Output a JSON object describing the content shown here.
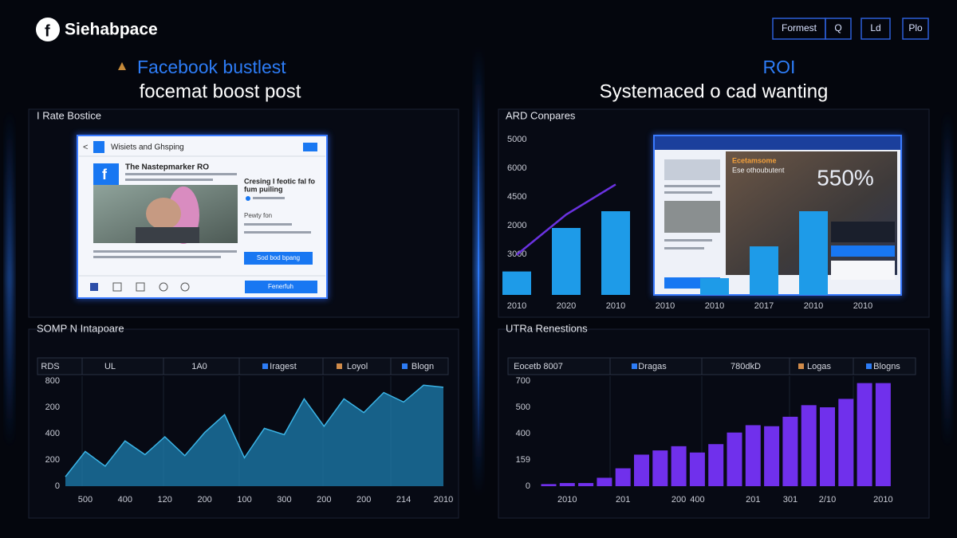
{
  "header": {
    "brand": "Siehabpace",
    "buttons": [
      "Formest",
      "Q",
      "Ld",
      "Plo"
    ]
  },
  "left_heading": {
    "title": "Facebook bustlest",
    "subtitle": "focemat boost post"
  },
  "right_heading": {
    "title": "ROI",
    "subtitle": "Systemaced o cad wanting"
  },
  "post_panel": {
    "title": "I Rate Bostice",
    "post": {
      "header": "Wisiets and Ghsping",
      "page_name": "The Nastepmarker RO",
      "headline": [
        "Cresing I feotic fal fo",
        "fum puiling"
      ],
      "meta": "Pewty fon",
      "cta": "Sod bod bpang",
      "footer_button": "Fenerfuh"
    }
  },
  "roi_card": {
    "headline": "Ecetamsome",
    "subline": "Ese othoubutent",
    "stat": "550%"
  },
  "chart_data": [
    {
      "type": "combo",
      "title": "ARD Conpares",
      "y_axis_labels": [
        "5000",
        "6000",
        "4500",
        "2000",
        "3000"
      ],
      "categories": [
        "2010",
        "2020",
        "2010",
        "2010",
        "2010",
        "2017",
        "2010",
        "2010"
      ],
      "ylim": [
        0,
        100
      ],
      "series": [
        {
          "type": "bar",
          "color": "#1e9be8",
          "values": [
            14,
            40,
            50,
            null,
            10,
            29,
            50,
            null
          ]
        },
        {
          "type": "line",
          "color": "#6a32e0",
          "values": [
            24,
            48,
            66,
            null,
            null,
            null,
            null,
            null
          ]
        }
      ]
    },
    {
      "type": "area",
      "title": "SOMP N Intapoare",
      "table_header": [
        "RDS",
        "UL",
        "1A0",
        "Iragest",
        "Loyol",
        "Blogn"
      ],
      "y_axis_labels": [
        "800",
        "200",
        "400",
        "200",
        "0"
      ],
      "categories": [
        null,
        "500",
        null,
        "400",
        null,
        "120",
        null,
        "200",
        null,
        "100",
        null,
        "300",
        null,
        "200",
        null,
        "200",
        null,
        "214",
        null,
        "2010"
      ],
      "ylim": [
        0,
        100
      ],
      "color": "#1d7fb0",
      "values": [
        9,
        33,
        19,
        43,
        30,
        47,
        29,
        51,
        68,
        27,
        55,
        49,
        83,
        57,
        83,
        70,
        89,
        80,
        96,
        94
      ]
    },
    {
      "type": "bar",
      "title": "UTRa Renestions",
      "table_header": [
        "Eocetb 8007",
        "Dragas",
        "780dkD",
        "Logas",
        "Blogns"
      ],
      "y_axis_labels": [
        "700",
        "500",
        "400",
        "159",
        "0"
      ],
      "categories": [
        null,
        "2010",
        null,
        null,
        "201",
        null,
        null,
        "200",
        "400",
        null,
        null,
        "201",
        null,
        "301",
        null,
        "2/10",
        null,
        null,
        "2010"
      ],
      "ylim": [
        0,
        100
      ],
      "color": "#7030ec",
      "values": [
        2,
        3,
        3,
        8,
        17,
        30,
        34,
        38,
        32,
        40,
        51,
        58,
        57,
        66,
        77,
        75,
        83,
        98,
        98
      ]
    }
  ]
}
